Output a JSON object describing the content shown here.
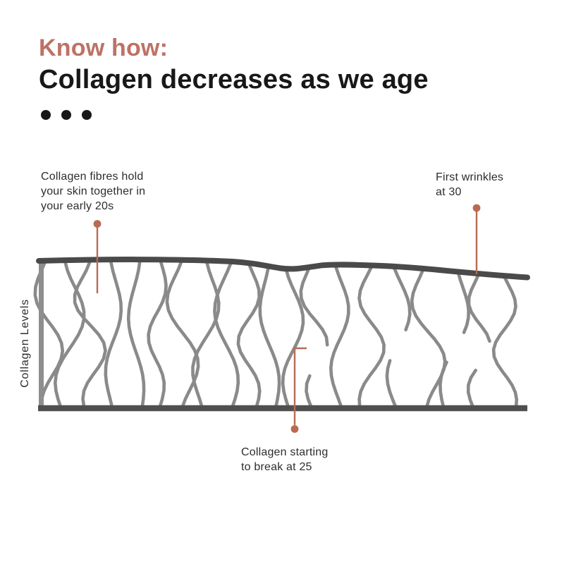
{
  "header": {
    "eyebrow": "Know how:",
    "title": "Collagen decreases as we age",
    "dots": 3
  },
  "figure": {
    "y_axis_label": "Collagen Levels",
    "annotations": {
      "early_20s": "Collagen fibres hold\nyour skin together in\nyour early 20s",
      "first_wrinkles": "First wrinkles\nat 30",
      "breaking_25": "Collagen starting\nto break at 25"
    }
  },
  "colors": {
    "eyebrow-accent": "#bd7265",
    "title-ink": "#181818",
    "annotation-ink": "#2d2d2d",
    "leader": "#b96a53",
    "fibre": "#8a8a8a",
    "surface-dark": "#4a4a4a",
    "baseline-dark": "#4f4f4f",
    "axis-gray": "#8e8e8e",
    "background": "#ffffff"
  }
}
